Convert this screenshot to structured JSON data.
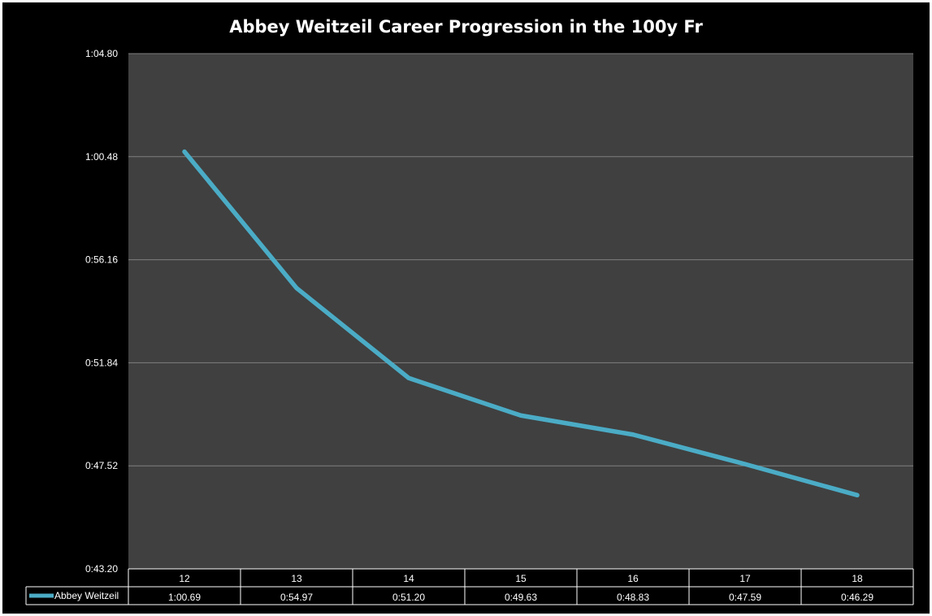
{
  "chart_data": {
    "type": "line",
    "title": "Abbey Weitzeil Career Progression in the 100y Fr",
    "categories": [
      "12",
      "13",
      "14",
      "15",
      "16",
      "17",
      "18"
    ],
    "series": [
      {
        "name": "Abbey Weitzeil",
        "values": [
          60.69,
          54.97,
          51.2,
          49.63,
          48.83,
          47.59,
          46.29
        ],
        "value_labels": [
          "1:00.69",
          "0:54.97",
          "0:51.20",
          "0:49.63",
          "0:48.83",
          "0:47.59",
          "0:46.29"
        ]
      }
    ],
    "ylim": [
      43.2,
      64.8
    ],
    "y_ticks": [
      43.2,
      47.52,
      51.84,
      56.16,
      60.48,
      64.8
    ],
    "y_tick_labels": [
      "0:43.20",
      "0:47.52",
      "0:51.84",
      "0:56.16",
      "1:00.48",
      "1:04.80"
    ],
    "xlabel": "",
    "ylabel": "",
    "grid": true,
    "data_table": true,
    "colors": {
      "background": "#000000",
      "plot_area": "#404040",
      "line": "#4bacc6",
      "grid": "#7f7f7f",
      "text": "#ffffff"
    }
  }
}
